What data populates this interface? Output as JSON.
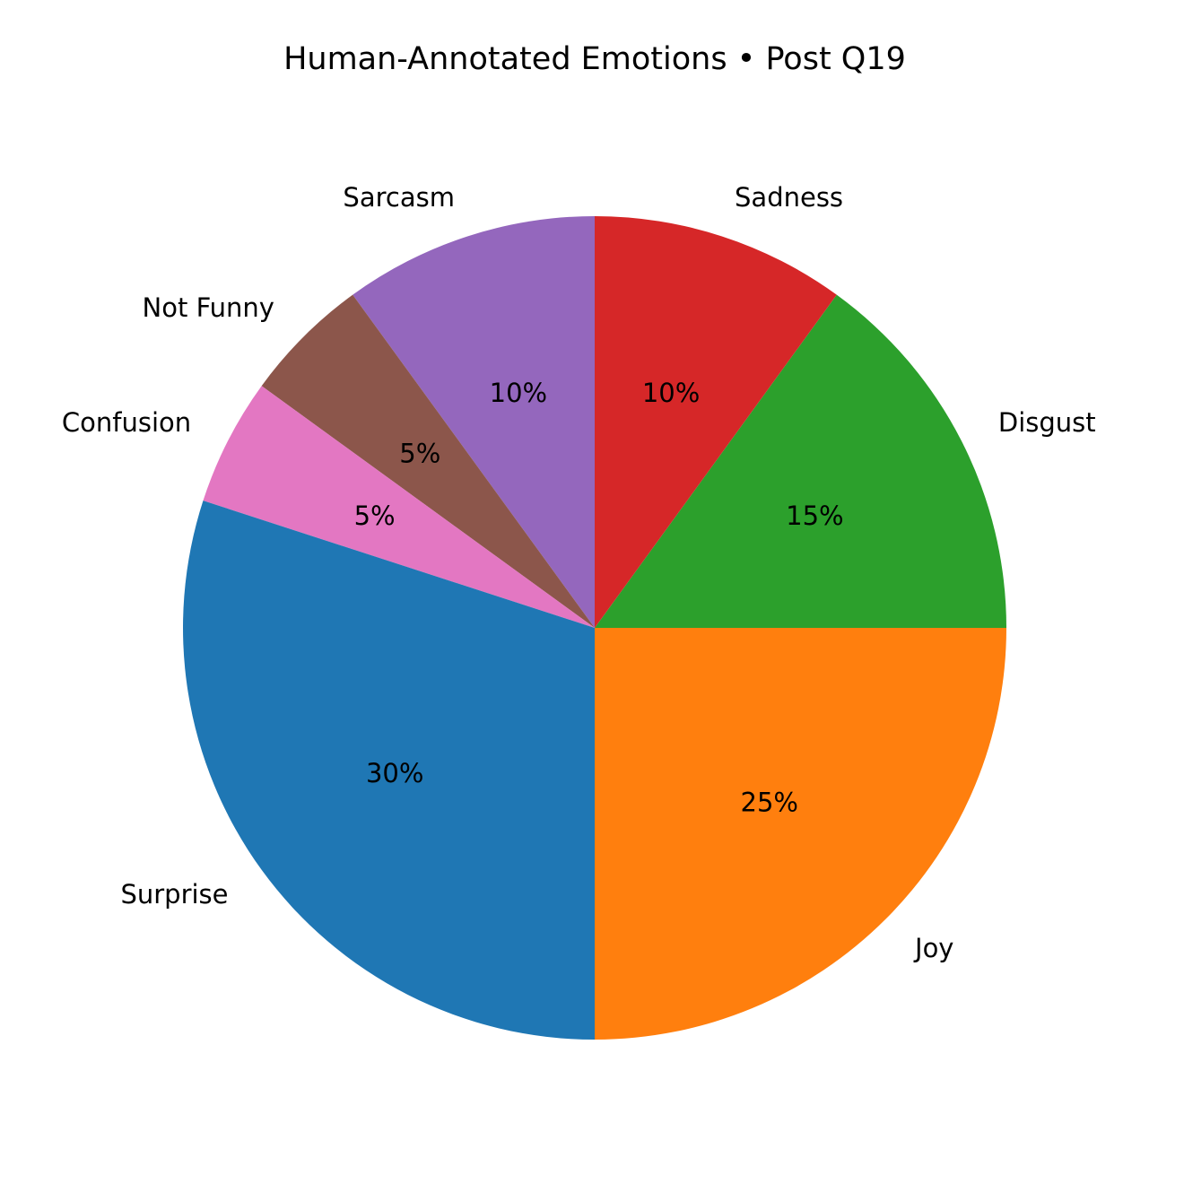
{
  "chart_data": {
    "type": "pie",
    "title": "Human-Annotated Emotions • Post Q19",
    "start_angle_deg": 0,
    "direction": "counterclockwise",
    "slices": [
      {
        "label": "Disgust",
        "value": 15,
        "pct_label": "15%",
        "color": "#2ca02c"
      },
      {
        "label": "Sadness",
        "value": 10,
        "pct_label": "10%",
        "color": "#d62728"
      },
      {
        "label": "Sarcasm",
        "value": 10,
        "pct_label": "10%",
        "color": "#9467bd"
      },
      {
        "label": "Not Funny",
        "value": 5,
        "pct_label": "5%",
        "color": "#8c564b"
      },
      {
        "label": "Confusion",
        "value": 5,
        "pct_label": "5%",
        "color": "#e377c2"
      },
      {
        "label": "Surprise",
        "value": 30,
        "pct_label": "30%",
        "color": "#1f77b4"
      },
      {
        "label": "Joy",
        "value": 25,
        "pct_label": "25%",
        "color": "#ff7f0e"
      }
    ]
  }
}
